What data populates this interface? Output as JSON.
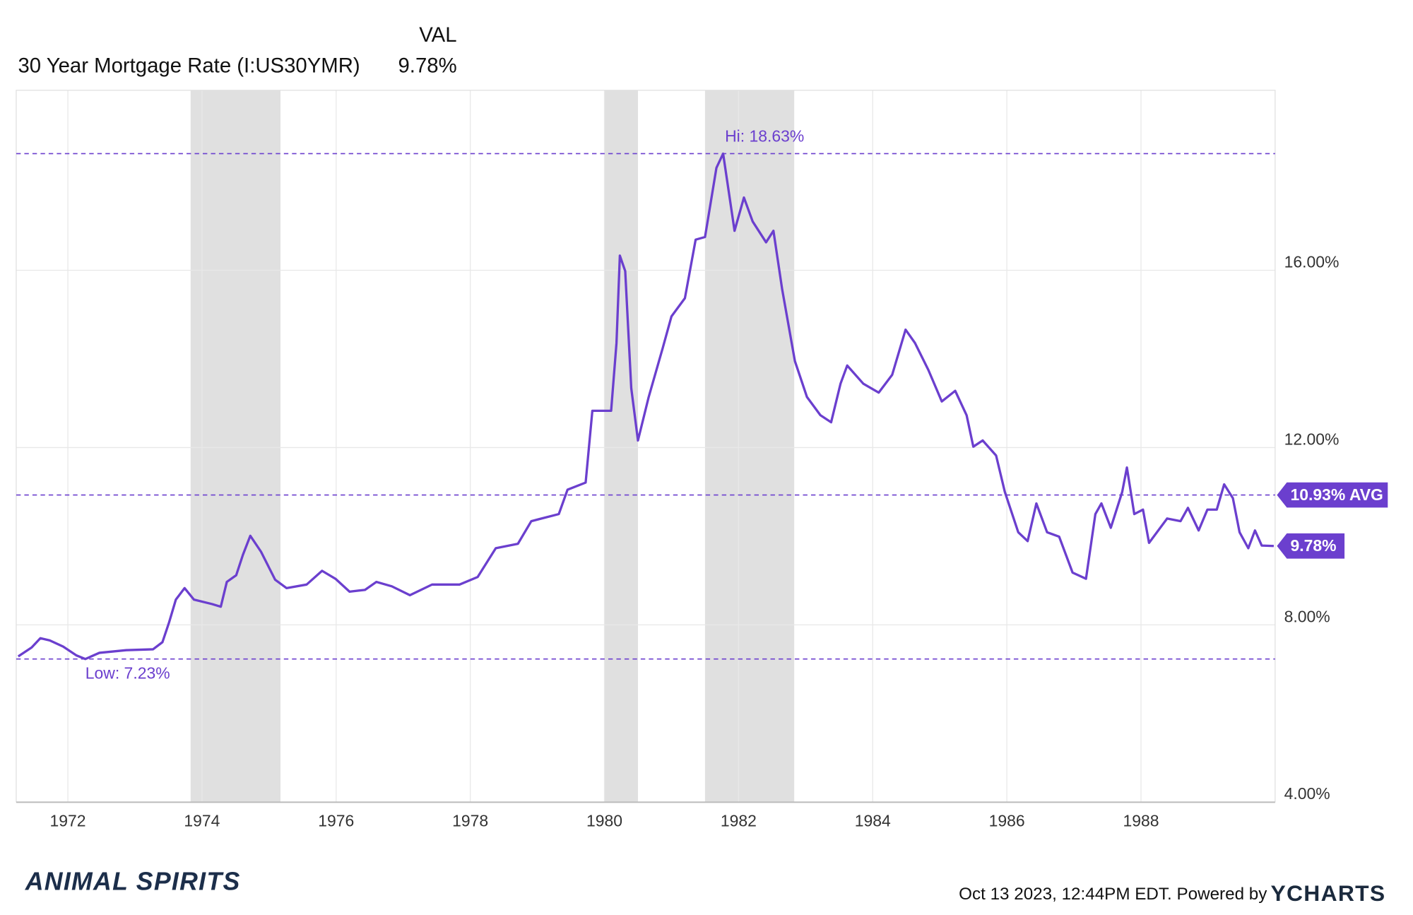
{
  "chart_data": {
    "type": "line",
    "value_header": "VAL",
    "x": [
      1971.26,
      1971.46,
      1971.59,
      1971.73,
      1971.93,
      1972.13,
      1972.26,
      1972.47,
      1972.87,
      1973.27,
      1973.41,
      1973.51,
      1973.61,
      1973.74,
      1973.88,
      1974.15,
      1974.28,
      1974.37,
      1974.51,
      1974.61,
      1974.72,
      1974.88,
      1975.09,
      1975.26,
      1975.56,
      1975.79,
      1975.99,
      1976.2,
      1976.43,
      1976.6,
      1976.83,
      1977.1,
      1977.43,
      1977.84,
      1978.11,
      1978.38,
      1978.71,
      1978.91,
      1979.32,
      1979.45,
      1979.72,
      1979.82,
      1980.1,
      1980.18,
      1980.23,
      1980.31,
      1980.4,
      1980.5,
      1980.66,
      1980.87,
      1981.0,
      1981.2,
      1981.36,
      1981.5,
      1981.67,
      1981.77,
      1981.94,
      1982.08,
      1982.21,
      1982.41,
      1982.52,
      1982.65,
      1982.84,
      1983.02,
      1983.22,
      1983.38,
      1983.52,
      1983.62,
      1983.86,
      1984.09,
      1984.29,
      1984.49,
      1984.63,
      1984.83,
      1985.03,
      1985.23,
      1985.4,
      1985.5,
      1985.64,
      1985.84,
      1985.97,
      1986.17,
      1986.31,
      1986.44,
      1986.6,
      1986.78,
      1986.98,
      1987.18,
      1987.32,
      1987.41,
      1987.55,
      1987.72,
      1987.79,
      1987.9,
      1988.03,
      1988.12,
      1988.39,
      1988.59,
      1988.7,
      1988.86,
      1988.99,
      1989.13,
      1989.24,
      1989.37,
      1989.47,
      1989.6,
      1989.7,
      1989.8,
      1989.98
    ],
    "series": [
      {
        "name": "30 Year Mortgage Rate (I:US30YMR)",
        "color": "#6b3fce",
        "values": [
          7.29,
          7.49,
          7.7,
          7.65,
          7.51,
          7.31,
          7.23,
          7.37,
          7.43,
          7.45,
          7.61,
          8.06,
          8.57,
          8.83,
          8.57,
          8.47,
          8.41,
          8.97,
          9.12,
          9.58,
          10.01,
          9.65,
          9.02,
          8.83,
          8.91,
          9.22,
          9.04,
          8.75,
          8.79,
          8.97,
          8.87,
          8.67,
          8.91,
          8.91,
          9.08,
          9.73,
          9.83,
          10.34,
          10.5,
          11.05,
          11.21,
          12.83,
          12.83,
          14.36,
          16.33,
          15.98,
          13.34,
          12.16,
          13.14,
          14.25,
          14.96,
          15.37,
          16.69,
          16.75,
          18.31,
          18.63,
          16.89,
          17.64,
          17.1,
          16.63,
          16.89,
          15.57,
          13.95,
          13.14,
          12.73,
          12.57,
          13.44,
          13.85,
          13.44,
          13.24,
          13.64,
          14.66,
          14.36,
          13.75,
          13.04,
          13.28,
          12.73,
          12.02,
          12.16,
          11.82,
          11.0,
          10.09,
          9.89,
          10.74,
          10.09,
          9.99,
          9.18,
          9.04,
          10.5,
          10.74,
          10.19,
          11.0,
          11.55,
          10.5,
          10.6,
          9.85,
          10.4,
          10.34,
          10.64,
          10.13,
          10.6,
          10.6,
          11.17,
          10.86,
          10.09,
          9.73,
          10.13,
          9.79,
          9.78
        ],
        "value_label": "9.78%"
      }
    ],
    "reference_lines": [
      {
        "label": "Hi: 18.63%",
        "value": 18.63
      },
      {
        "label": "10.93% AVG",
        "value": 10.93
      },
      {
        "label": "Low: 7.23%",
        "value": 7.23
      }
    ],
    "shaded_ranges": [
      [
        1973.83,
        1975.17
      ],
      [
        1980.0,
        1980.5
      ],
      [
        1981.5,
        1982.83
      ]
    ],
    "shade_color": "#e0e0e0",
    "xlim": [
      1971.23,
      1990.0
    ],
    "xticks": [
      1972,
      1974,
      1976,
      1978,
      1980,
      1982,
      1984,
      1986,
      1988
    ],
    "ylim": [
      4,
      20.06
    ],
    "yticks": [
      {
        "value": 4,
        "label": "4.00%"
      },
      {
        "value": 8,
        "label": "8.00%"
      },
      {
        "value": 12,
        "label": "12.00%"
      },
      {
        "value": 16,
        "label": "16.00%"
      }
    ],
    "grid": true,
    "timestamp": "Oct 13 2023, 12:44PM EDT. Powered by",
    "brand": "YCHARTS",
    "watermark": "ANIMAL SPIRITS"
  }
}
